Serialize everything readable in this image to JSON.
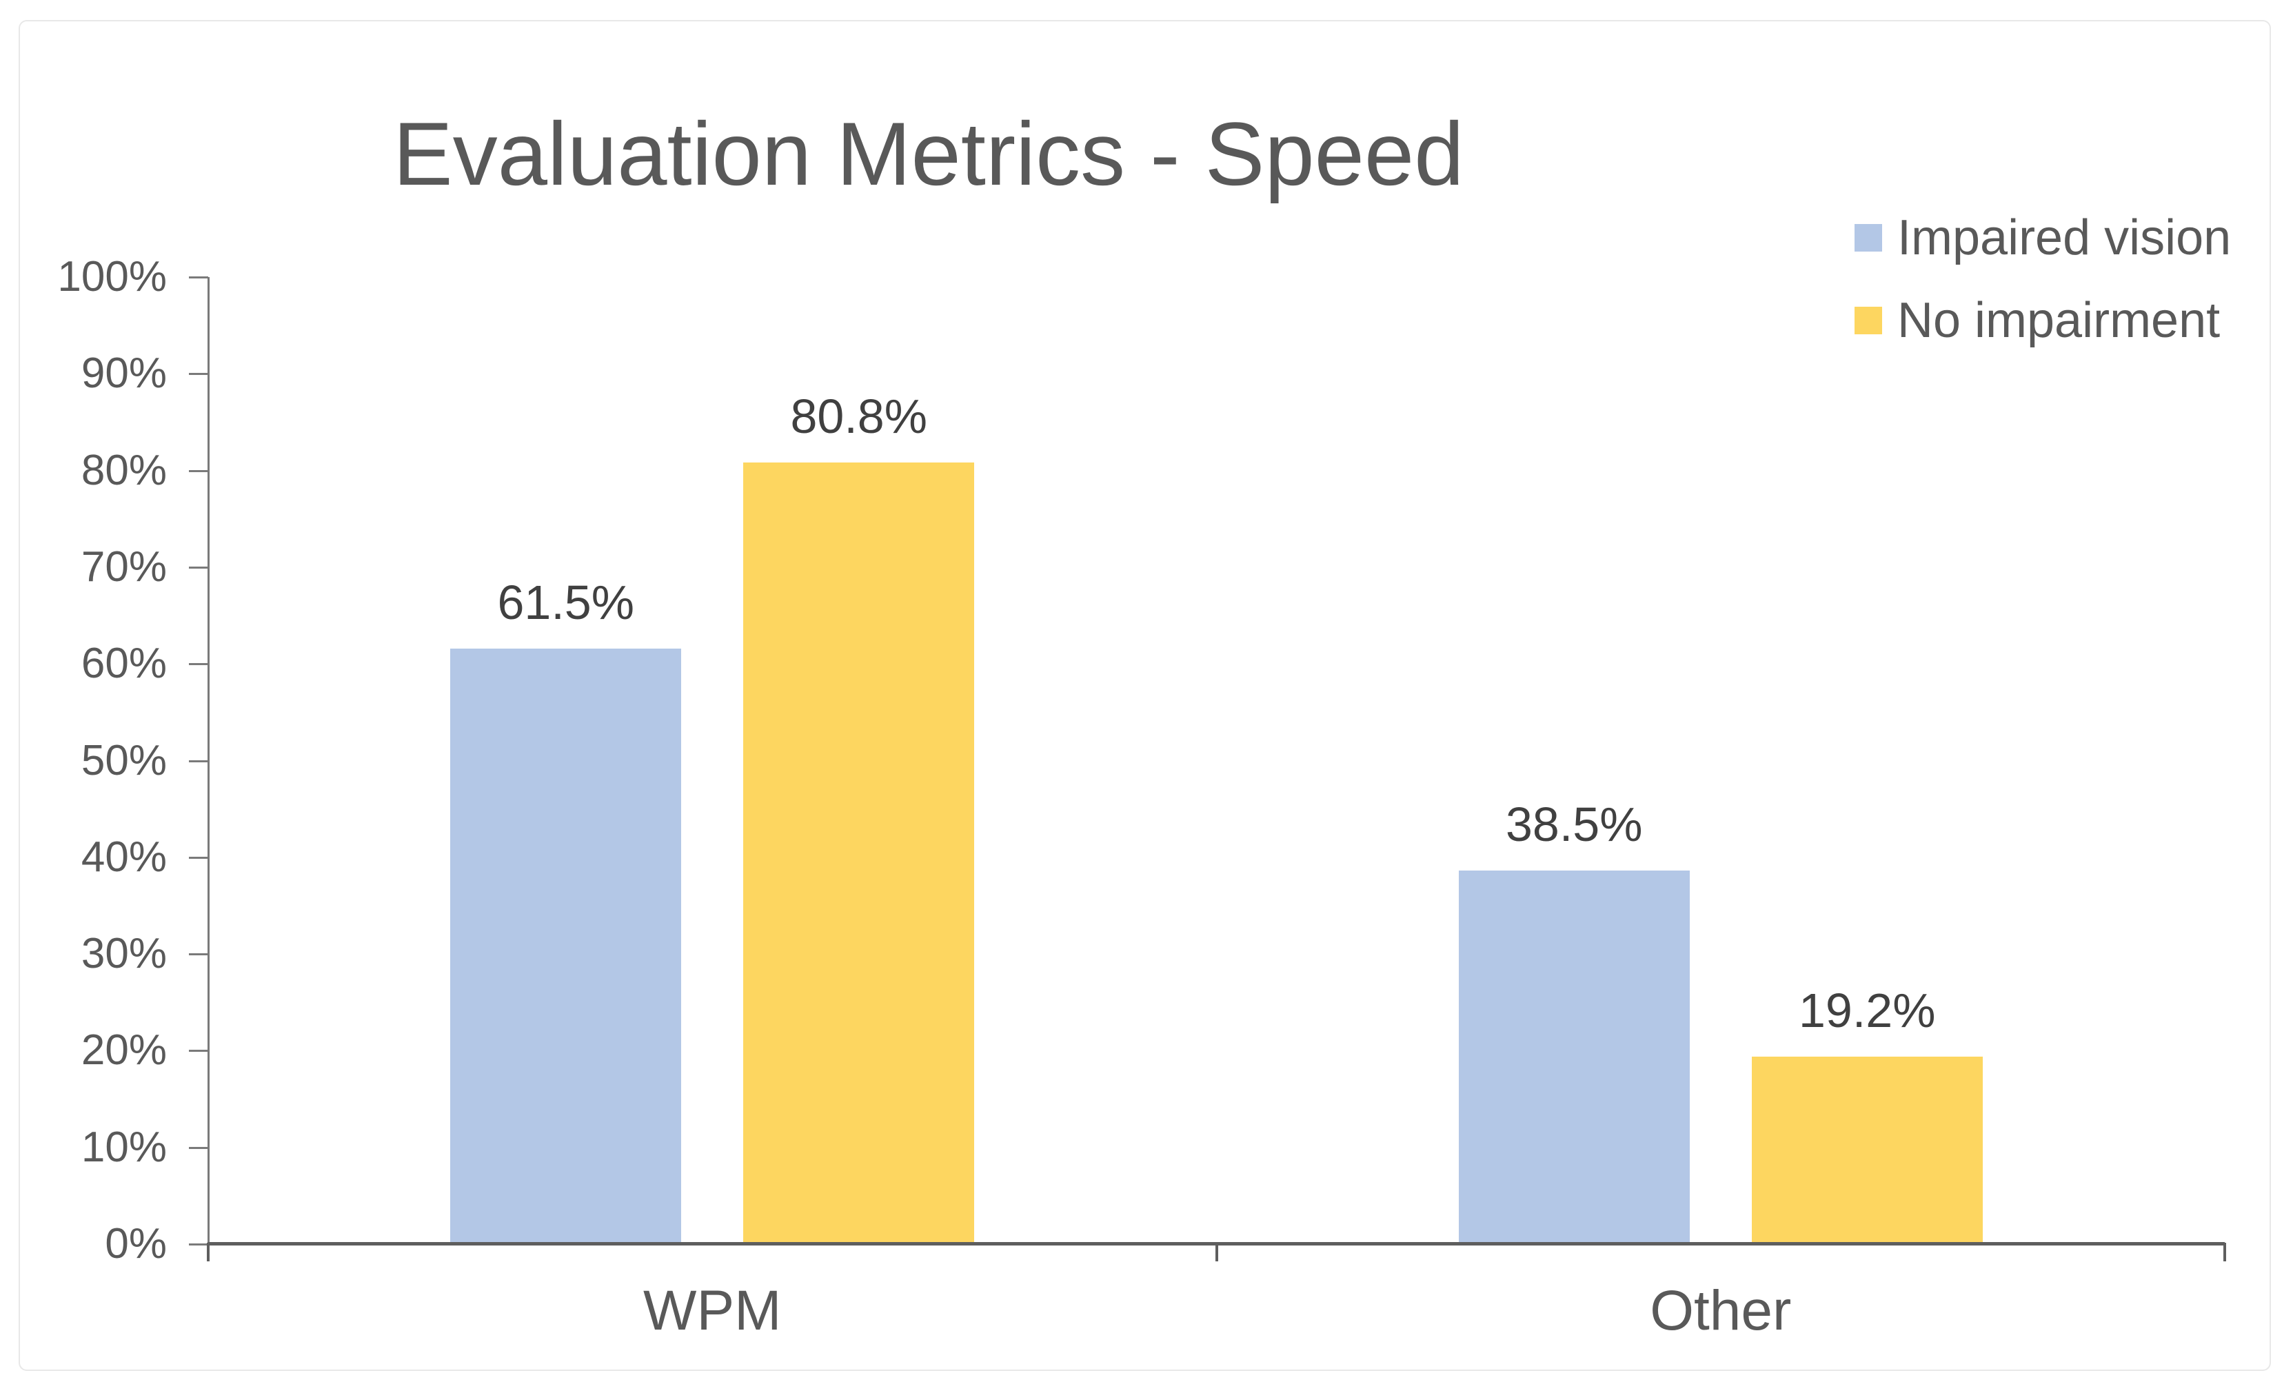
{
  "chart_data": {
    "type": "bar",
    "title": "Evaluation Metrics - Speed",
    "categories": [
      "WPM",
      "Other"
    ],
    "series": [
      {
        "name": "Impaired vision",
        "color": "#B3C7E6",
        "values": [
          61.5,
          38.5
        ],
        "labels": [
          "61.5%",
          "38.5%"
        ]
      },
      {
        "name": "No impairment",
        "color": "#FDD660",
        "values": [
          80.8,
          19.2
        ],
        "labels": [
          "80.8%",
          "19.2%"
        ]
      }
    ],
    "ylim": [
      0,
      100
    ],
    "yticks": [
      "0%",
      "10%",
      "20%",
      "30%",
      "40%",
      "50%",
      "60%",
      "70%",
      "80%",
      "90%",
      "100%"
    ],
    "xlabel": "",
    "ylabel": "",
    "grid": false,
    "legend_position": "top-right"
  },
  "colors": {
    "text": "#595959",
    "value_label": "#404040",
    "axis": "#5e5e5e",
    "tick": "#7a7a7a",
    "card_border": "#e8e8e8",
    "background": "#ffffff"
  }
}
